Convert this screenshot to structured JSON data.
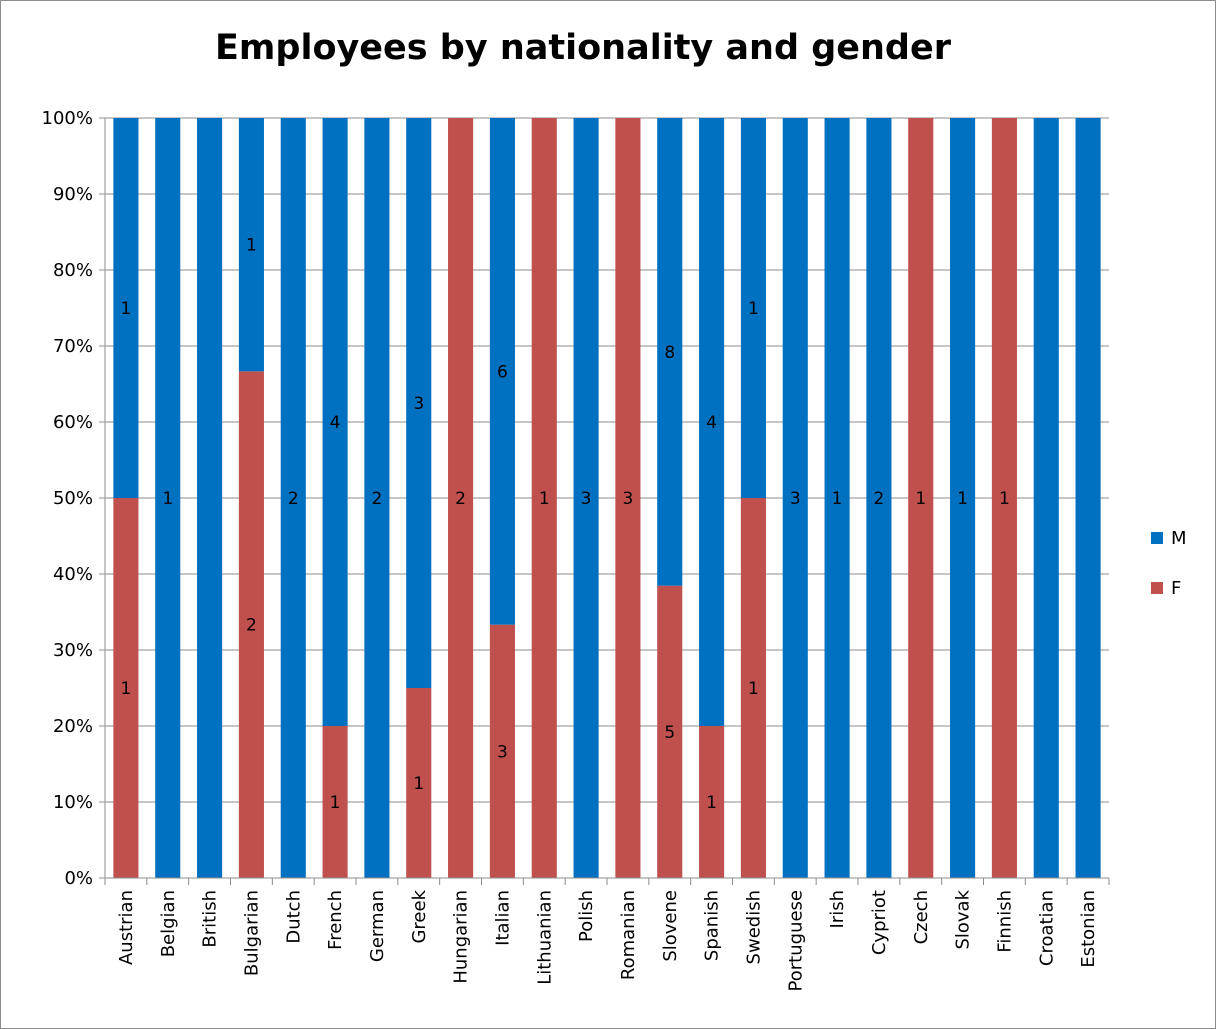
{
  "chart_data": {
    "type": "bar",
    "stacked": true,
    "percent_stacked": true,
    "title": "Employees by nationality and gender",
    "xlabel": "",
    "ylabel": "",
    "ylim": [
      0,
      100
    ],
    "y_ticks": [
      "0%",
      "10%",
      "20%",
      "30%",
      "40%",
      "50%",
      "60%",
      "70%",
      "80%",
      "90%",
      "100%"
    ],
    "grid": true,
    "legend_position": "right",
    "categories": [
      "Austrian",
      "Belgian",
      "British",
      "Bulgarian",
      "Dutch",
      "French",
      "German",
      "Greek",
      "Hungarian",
      "Italian",
      "Lithuanian",
      "Polish",
      "Romanian",
      "Slovene",
      "Spanish",
      "Swedish",
      "Portuguese",
      "Irish",
      "Cypriot",
      "Czech",
      "Slovak",
      "Finnish",
      "Croatian",
      "Estonian"
    ],
    "series": [
      {
        "name": "F",
        "color": "#C0504D",
        "values": [
          1,
          0,
          0,
          2,
          0,
          1,
          0,
          1,
          2,
          3,
          1,
          0,
          3,
          5,
          1,
          1,
          0,
          0,
          0,
          1,
          0,
          1,
          0,
          0
        ],
        "labels": [
          "1",
          "",
          "",
          "2",
          "",
          "1",
          "",
          "1",
          "2",
          "3",
          "1",
          "",
          "3",
          "5",
          "1",
          "1",
          "",
          "",
          "",
          "1",
          "",
          "1",
          "",
          ""
        ]
      },
      {
        "name": "M",
        "color": "#0070C0",
        "values": [
          1,
          1,
          1,
          1,
          2,
          4,
          2,
          3,
          0,
          6,
          0,
          3,
          0,
          8,
          4,
          1,
          3,
          1,
          2,
          0,
          1,
          0,
          1,
          1
        ],
        "labels": [
          "1",
          "1",
          "",
          "1",
          "2",
          "4",
          "2",
          "3",
          "",
          "6",
          "",
          "3",
          "",
          "8",
          "4",
          "1",
          "3",
          "1",
          "2",
          "",
          "1",
          "",
          "",
          ""
        ]
      }
    ],
    "legend": [
      "M",
      "F"
    ]
  }
}
